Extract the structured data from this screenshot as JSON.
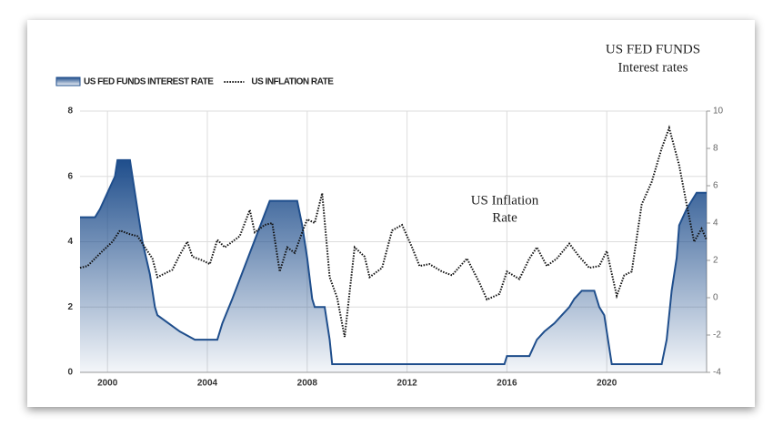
{
  "chart_data": {
    "type": "line",
    "annotations": [
      [
        "US FED FUNDS",
        "Interest rates"
      ],
      [
        "US  Inflation",
        "Rate"
      ]
    ],
    "xlim": [
      1998.9,
      2024
    ],
    "xticks": [
      2000,
      2004,
      2008,
      2012,
      2016,
      2020
    ],
    "ylim": [
      0,
      8
    ],
    "yticks": [
      0,
      2,
      4,
      6,
      8
    ],
    "y2lim": [
      -4,
      10
    ],
    "y2ticks": [
      -4,
      -2,
      0,
      2,
      4,
      6,
      8,
      10
    ],
    "grid": true,
    "legend": "top-left",
    "series": [
      {
        "name": "US FED FUNDS INTEREST RATE",
        "style": "area",
        "color": "#1f4e8c",
        "x": [
          1998.9,
          1999.5,
          1999.7,
          2000.0,
          2000.3,
          2000.4,
          2000.9,
          2001.0,
          2001.2,
          2001.4,
          2001.7,
          2001.9,
          2002.0,
          2002.9,
          2003.5,
          2004.4,
          2004.6,
          2005.0,
          2005.5,
          2006.0,
          2006.5,
          2007.6,
          2007.8,
          2008.0,
          2008.2,
          2008.3,
          2008.7,
          2008.9,
          2009.0,
          2015.9,
          2016.0,
          2016.9,
          2017.2,
          2017.5,
          2017.9,
          2018.2,
          2018.5,
          2018.7,
          2019.0,
          2019.5,
          2019.7,
          2019.9,
          2020.2,
          2022.2,
          2022.4,
          2022.6,
          2022.8,
          2022.9,
          2023.2,
          2023.6,
          2024.0
        ],
        "values": [
          4.75,
          4.75,
          5.0,
          5.5,
          6.0,
          6.5,
          6.5,
          6.0,
          5.0,
          4.0,
          3.0,
          2.0,
          1.75,
          1.25,
          1.0,
          1.0,
          1.5,
          2.25,
          3.25,
          4.25,
          5.25,
          5.25,
          4.5,
          3.5,
          2.25,
          2.0,
          2.0,
          1.0,
          0.25,
          0.25,
          0.5,
          0.5,
          1.0,
          1.25,
          1.5,
          1.75,
          2.0,
          2.25,
          2.5,
          2.5,
          2.0,
          1.75,
          0.25,
          0.25,
          1.0,
          2.5,
          3.5,
          4.5,
          5.0,
          5.5,
          5.5
        ]
      },
      {
        "name": "US INFLATION RATE",
        "style": "dotted",
        "color": "#111111",
        "axis": "y2",
        "x": [
          1998.9,
          1999.2,
          1999.5,
          1999.8,
          2000.2,
          2000.5,
          2000.9,
          2001.2,
          2001.5,
          2001.8,
          2002.0,
          2002.3,
          2002.6,
          2002.9,
          2003.2,
          2003.4,
          2003.8,
          2004.1,
          2004.4,
          2004.7,
          2005.0,
          2005.3,
          2005.7,
          2005.9,
          2006.3,
          2006.6,
          2006.9,
          2007.2,
          2007.5,
          2007.8,
          2008.0,
          2008.3,
          2008.6,
          2008.9,
          2009.2,
          2009.5,
          2009.9,
          2010.3,
          2010.5,
          2011.0,
          2011.4,
          2011.8,
          2012.2,
          2012.5,
          2012.9,
          2013.4,
          2013.8,
          2014.4,
          2014.9,
          2015.2,
          2015.7,
          2016.0,
          2016.5,
          2016.9,
          2017.2,
          2017.6,
          2018.0,
          2018.5,
          2018.9,
          2019.3,
          2019.7,
          2020.0,
          2020.4,
          2020.7,
          2021.0,
          2021.4,
          2021.8,
          2022.2,
          2022.5,
          2022.9,
          2023.2,
          2023.5,
          2023.8,
          2024.0
        ],
        "values": [
          1.6,
          1.7,
          2.1,
          2.5,
          3.0,
          3.6,
          3.4,
          3.3,
          2.7,
          2.1,
          1.1,
          1.3,
          1.5,
          2.3,
          3.0,
          2.2,
          2.0,
          1.8,
          3.1,
          2.7,
          3.0,
          3.3,
          4.7,
          3.5,
          3.9,
          4.0,
          1.4,
          2.7,
          2.4,
          3.5,
          4.2,
          4.0,
          5.6,
          1.1,
          0.0,
          -2.1,
          2.7,
          2.2,
          1.1,
          1.6,
          3.6,
          3.9,
          2.7,
          1.7,
          1.8,
          1.4,
          1.2,
          2.1,
          0.8,
          -0.1,
          0.2,
          1.4,
          1.0,
          2.1,
          2.7,
          1.7,
          2.1,
          2.9,
          2.2,
          1.6,
          1.7,
          2.5,
          0.1,
          1.2,
          1.4,
          5.0,
          6.2,
          8.0,
          9.1,
          7.1,
          5.0,
          3.0,
          3.7,
          3.1
        ]
      }
    ]
  }
}
